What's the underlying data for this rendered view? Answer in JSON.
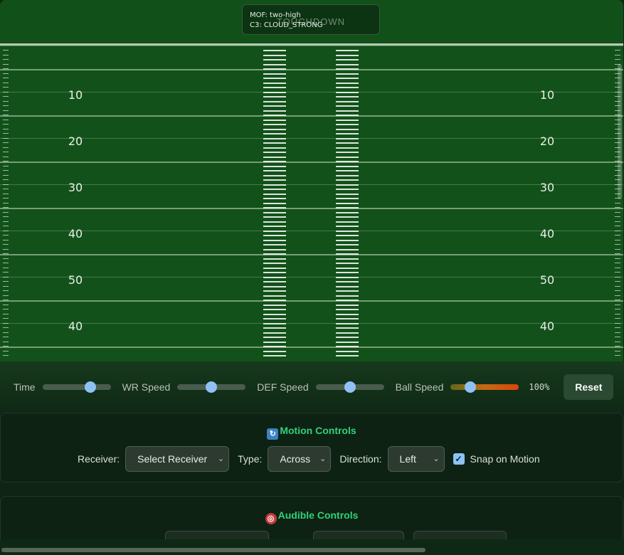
{
  "field": {
    "endzone_label": "TOUCHDOWN",
    "coverage_mof": "MOF: two-high",
    "coverage_call": "C3: CLOUD_STRONG",
    "yard_numbers": [
      "10",
      "20",
      "30",
      "40",
      "50",
      "40"
    ]
  },
  "sliders": {
    "time_label": "Time",
    "time_value": 0.74,
    "wr_label": "WR Speed",
    "wr_value": 0.5,
    "def_label": "DEF Speed",
    "def_value": 0.5,
    "ball_label": "Ball Speed",
    "ball_value": 0.25,
    "ball_percent": "100%",
    "reset_label": "Reset"
  },
  "motion": {
    "title": "Motion Controls",
    "receiver_label": "Receiver:",
    "receiver_value": "Select Receiver",
    "type_label": "Type:",
    "type_value": "Across",
    "direction_label": "Direction:",
    "direction_value": "Left",
    "snap_label": "Snap on Motion",
    "snap_checked": true
  },
  "audible": {
    "title": "Audible Controls"
  },
  "colors": {
    "accent": "#34d07a",
    "thumb": "#8ec2f5",
    "field": "#12521a"
  }
}
